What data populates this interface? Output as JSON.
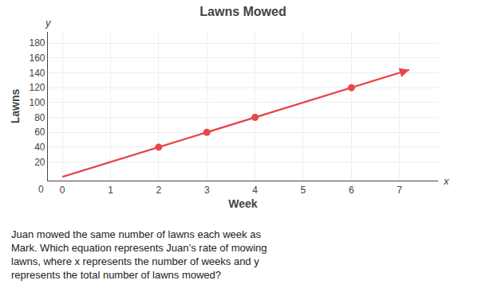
{
  "chart_data": {
    "type": "scatter",
    "title": "Lawns Mowed",
    "xlabel": "Week",
    "ylabel": "Lawns",
    "series": [
      {
        "type": "scatter",
        "color": "#e8474a",
        "x": [
          2,
          3,
          4,
          6
        ],
        "values": [
          40,
          60,
          80,
          120
        ]
      },
      {
        "type": "line",
        "color": "#e8474a",
        "x": [
          0,
          7.2
        ],
        "values": [
          0,
          144
        ]
      }
    ],
    "xlim": [
      -0.3,
      7.8
    ],
    "ylim": [
      -5,
      195
    ],
    "xticks": [
      0,
      1,
      2,
      3,
      4,
      5,
      6,
      7
    ],
    "yticks": [
      20,
      40,
      60,
      80,
      100,
      120,
      140,
      160,
      180
    ],
    "grid": true,
    "annotations": [
      "x",
      "y",
      "0",
      "Juan mowed the same number of lawns each week as\nMark. Which equation represents Juan’s rate of mowing\nlawns, where x represents the number of weeks and y\nrepresents the total number of lawns mowed?"
    ]
  }
}
